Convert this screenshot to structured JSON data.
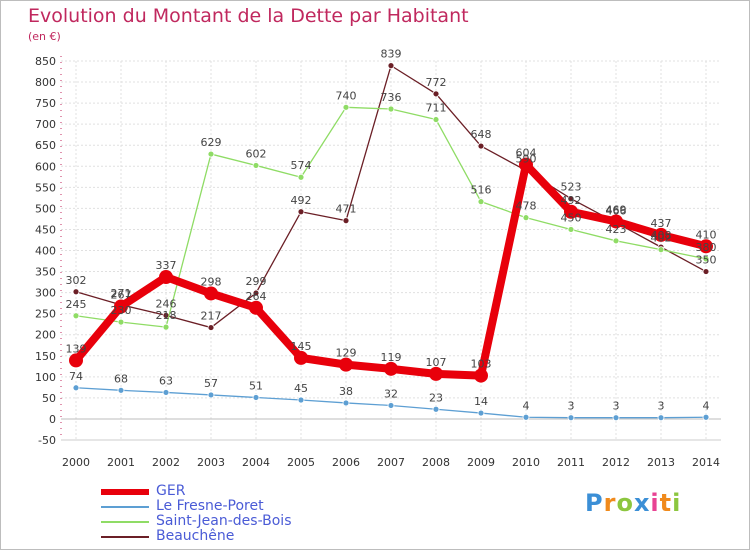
{
  "title": "Evolution du Montant de la Dette par Habitant",
  "unit": "(en €)",
  "logo": "Proxiti",
  "chart_data": {
    "type": "line",
    "title": "Evolution du Montant de la Dette par Habitant",
    "ylabel": "(en €)",
    "ylim": [
      -50,
      850
    ],
    "yticks": [
      -50,
      0,
      50,
      100,
      150,
      200,
      250,
      300,
      350,
      400,
      450,
      500,
      550,
      600,
      650,
      700,
      750,
      800,
      850
    ],
    "x": [
      2000,
      2001,
      2002,
      2003,
      2004,
      2005,
      2006,
      2007,
      2008,
      2009,
      2010,
      2011,
      2012,
      2013,
      2014
    ],
    "grid": true,
    "legend_position": "bottom-left",
    "series": [
      {
        "name": "GER",
        "color": "#e8000b",
        "values": [
          139,
          267,
          337,
          298,
          264,
          145,
          129,
          119,
          107,
          103,
          604,
          492,
          469,
          437,
          410
        ]
      },
      {
        "name": "Le Fresne-Poret",
        "color": "#5d9fd3",
        "values": [
          74,
          68,
          63,
          57,
          51,
          45,
          38,
          32,
          23,
          14,
          4,
          3,
          3,
          3,
          4
        ]
      },
      {
        "name": "Saint-Jean-des-Bois",
        "color": "#8fdc65",
        "values": [
          245,
          230,
          218,
          629,
          602,
          574,
          740,
          736,
          711,
          516,
          478,
          450,
          423,
          402,
          380
        ]
      },
      {
        "name": "Beauchêne",
        "color": "#6b1f26",
        "values": [
          302,
          271,
          246,
          217,
          299,
          492,
          471,
          839,
          772,
          648,
          590,
          523,
          466,
          408,
          350
        ]
      }
    ]
  }
}
